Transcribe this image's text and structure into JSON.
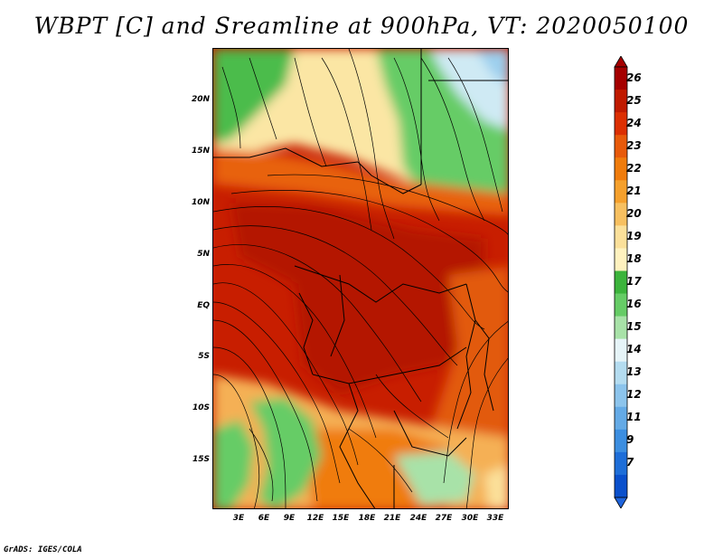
{
  "title": "WBPT [C] and Sreamline at 900hPa, VT: 2020050100",
  "credit": "GrADS: IGES/COLA",
  "map": {
    "lat_labels": [
      "20N",
      "15N",
      "10N",
      "5N",
      "EQ",
      "5S",
      "10S",
      "15S"
    ],
    "lon_labels": [
      "3E",
      "6E",
      "9E",
      "12E",
      "15E",
      "18E",
      "21E",
      "24E",
      "27E",
      "30E",
      "33E"
    ]
  },
  "colorbar": {
    "levels": [
      "26",
      "25",
      "24",
      "23",
      "22",
      "21",
      "20",
      "19",
      "18",
      "17",
      "16",
      "15",
      "14",
      "13",
      "12",
      "11",
      "9",
      "7"
    ],
    "colors": [
      "#a50000",
      "#c01a00",
      "#dc2f02",
      "#e85a0a",
      "#f07c0c",
      "#f5a02c",
      "#f7c060",
      "#fbe09a",
      "#fff2bf",
      "#3cb43c",
      "#66cc66",
      "#a8e2a8",
      "#e6f4f8",
      "#b4dcf0",
      "#8cc4ec",
      "#64aae6",
      "#3c8ee0",
      "#1e6ed8",
      "#0a50cc"
    ]
  }
}
